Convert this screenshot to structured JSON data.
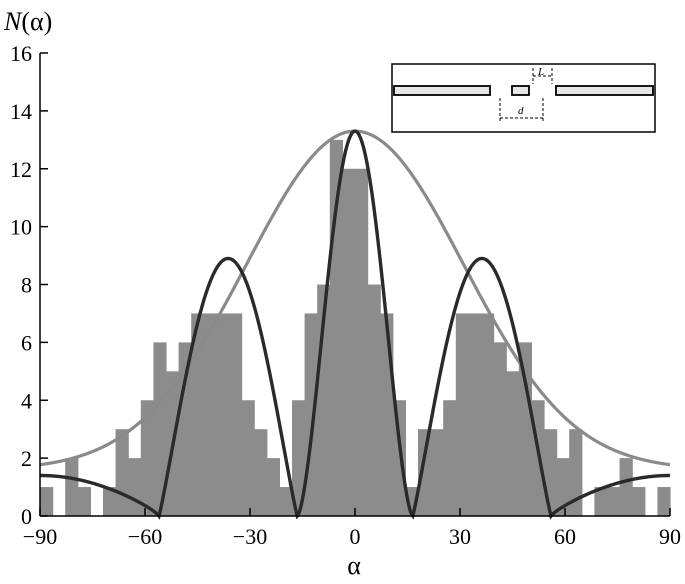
{
  "chart_data": {
    "type": "bar",
    "ylabel_prefix": "N",
    "ylabel_suffix": "(α)",
    "xlabel": "α",
    "xlim": [
      -90,
      90
    ],
    "ylim": [
      0,
      16
    ],
    "xticks": [
      "−90",
      "−60",
      "−30",
      "0",
      "30",
      "60",
      "90"
    ],
    "xtick_values": [
      -90,
      -60,
      -30,
      0,
      30,
      60,
      90
    ],
    "yticks": [
      "0",
      "2",
      "4",
      "6",
      "8",
      "10",
      "12",
      "14",
      "16"
    ],
    "ytick_values": [
      0,
      2,
      4,
      6,
      8,
      10,
      12,
      14,
      16
    ],
    "grid": false,
    "histogram": {
      "bin_width": 3.6,
      "bin_centers": [
        -88.2,
        -84.6,
        -81.0,
        -77.4,
        -73.8,
        -70.2,
        -66.6,
        -63.0,
        -59.4,
        -55.8,
        -52.2,
        -48.6,
        -45.0,
        -41.4,
        -37.8,
        -34.2,
        -30.6,
        -27.0,
        -23.4,
        -19.8,
        -16.2,
        -12.6,
        -9.0,
        -5.4,
        -1.8,
        1.8,
        5.4,
        9.0,
        12.6,
        16.2,
        19.8,
        23.4,
        27.0,
        30.6,
        34.2,
        37.8,
        41.4,
        45.0,
        48.6,
        52.2,
        55.8,
        59.4,
        63.0,
        66.6,
        70.2,
        73.8,
        77.4,
        81.0,
        84.6,
        88.2
      ],
      "counts": [
        1,
        0,
        2,
        1,
        0,
        1,
        3,
        2,
        4,
        6,
        5,
        6,
        7,
        7,
        7,
        7,
        4,
        3,
        2,
        1,
        4,
        7,
        8,
        13,
        12,
        12,
        8,
        7,
        4,
        1,
        3,
        3,
        4,
        7,
        7,
        7,
        6,
        5,
        6,
        4,
        3,
        2,
        3,
        0,
        1,
        1,
        2,
        1,
        0,
        1
      ],
      "color": "#8c8c8c"
    },
    "series": [
      {
        "type": "envelope",
        "peak": 13.3,
        "sigma": 31,
        "floor": 1.6,
        "color": "#8a8a8a"
      },
      {
        "type": "interference",
        "peak": 13.3,
        "floor": 1.4,
        "color": "#2a2a2a"
      }
    ],
    "inset": {
      "type": "schematic",
      "labels": [
        "L",
        "d"
      ]
    }
  }
}
